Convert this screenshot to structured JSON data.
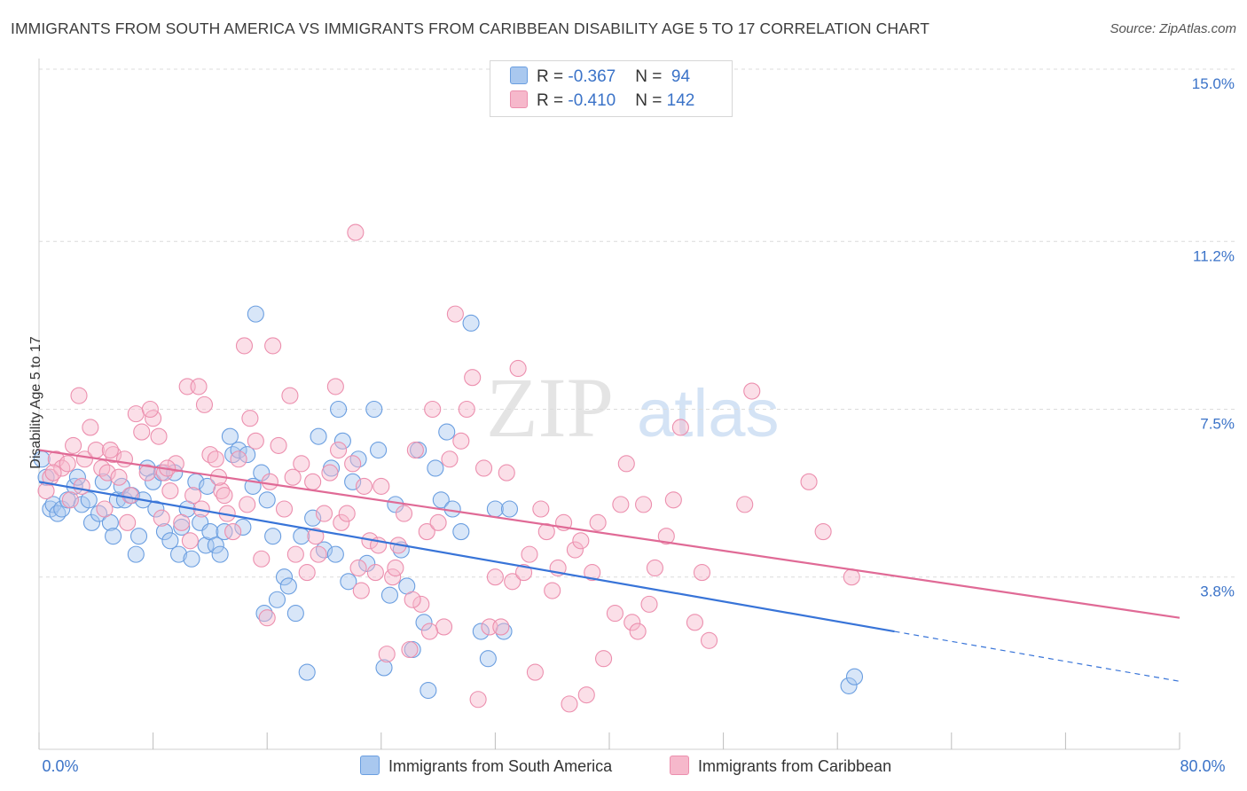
{
  "header": {
    "title": "IMMIGRANTS FROM SOUTH AMERICA VS IMMIGRANTS FROM CARIBBEAN DISABILITY AGE 5 TO 17 CORRELATION CHART",
    "source": "Source: ZipAtlas.com"
  },
  "watermark": {
    "part1": "ZIP",
    "part2": "atlas"
  },
  "legend_top": {
    "rows": [
      {
        "r_label": "R = ",
        "r_value": "-0.367",
        "n_label": "N = ",
        "n_value": " 94",
        "color": "#a9c8ef"
      },
      {
        "r_label": "R = ",
        "r_value": "-0.410",
        "n_label": "N = ",
        "n_value": "142",
        "color": "#f6b8cb"
      }
    ]
  },
  "chart_data": {
    "type": "scatter",
    "title": "IMMIGRANTS FROM SOUTH AMERICA VS IMMIGRANTS FROM CARIBBEAN DISABILITY AGE 5 TO 17 CORRELATION CHART",
    "xlabel": "",
    "ylabel": "Disability Age 5 to 17",
    "xlim": [
      0,
      80
    ],
    "ylim": [
      0,
      15.0
    ],
    "x_tick_labels": [
      "0.0%",
      "80.0%"
    ],
    "y_ticks": [
      3.8,
      7.5,
      11.2,
      15.0
    ],
    "y_tick_labels": [
      "3.8%",
      "7.5%",
      "11.2%",
      "15.0%"
    ],
    "grid": true,
    "legend": "bottom-center",
    "colors": {
      "blue_fill": "#a9c8ef",
      "blue_stroke": "#6a9ee0",
      "blue_line": "#3874d8",
      "pink_fill": "#f6b8cb",
      "pink_stroke": "#ec8fae",
      "pink_line": "#e06a96"
    },
    "series": [
      {
        "name": "Immigrants from South America",
        "r": -0.367,
        "n": 94,
        "trend": {
          "x0": 0,
          "y0": 5.9,
          "x1": 60,
          "y1": 2.6,
          "dash_to_x": 80,
          "dash_to_y": 1.5
        },
        "points": [
          [
            0.2,
            6.4
          ],
          [
            0.5,
            6.0
          ],
          [
            0.8,
            5.3
          ],
          [
            1.0,
            5.4
          ],
          [
            1.3,
            5.2
          ],
          [
            1.6,
            5.3
          ],
          [
            2.0,
            5.5
          ],
          [
            2.5,
            5.8
          ],
          [
            2.7,
            6.0
          ],
          [
            3.0,
            5.4
          ],
          [
            3.5,
            5.5
          ],
          [
            3.7,
            5.0
          ],
          [
            4.2,
            5.2
          ],
          [
            4.5,
            5.9
          ],
          [
            5.0,
            5.0
          ],
          [
            5.2,
            4.7
          ],
          [
            5.5,
            5.5
          ],
          [
            5.8,
            5.8
          ],
          [
            6.0,
            5.5
          ],
          [
            6.5,
            5.6
          ],
          [
            6.8,
            4.3
          ],
          [
            7.0,
            4.7
          ],
          [
            7.3,
            5.5
          ],
          [
            7.6,
            6.2
          ],
          [
            8.0,
            5.9
          ],
          [
            8.2,
            5.3
          ],
          [
            8.6,
            6.1
          ],
          [
            8.8,
            4.8
          ],
          [
            9.2,
            4.6
          ],
          [
            9.5,
            6.1
          ],
          [
            9.8,
            4.3
          ],
          [
            10.0,
            4.9
          ],
          [
            10.4,
            5.3
          ],
          [
            10.7,
            4.2
          ],
          [
            11.0,
            5.9
          ],
          [
            11.3,
            5.0
          ],
          [
            11.7,
            4.5
          ],
          [
            12.0,
            4.8
          ],
          [
            12.4,
            4.5
          ],
          [
            12.7,
            4.3
          ],
          [
            13.0,
            4.8
          ],
          [
            13.4,
            6.9
          ],
          [
            13.6,
            6.5
          ],
          [
            14.0,
            6.6
          ],
          [
            14.3,
            4.9
          ],
          [
            14.6,
            6.5
          ],
          [
            15.0,
            5.8
          ],
          [
            15.2,
            9.6
          ],
          [
            15.6,
            6.1
          ],
          [
            16.0,
            5.5
          ],
          [
            16.4,
            4.7
          ],
          [
            16.7,
            3.3
          ],
          [
            17.2,
            3.8
          ],
          [
            17.5,
            3.6
          ],
          [
            18.0,
            3.0
          ],
          [
            18.4,
            4.7
          ],
          [
            18.8,
            1.7
          ],
          [
            19.2,
            5.1
          ],
          [
            19.6,
            6.9
          ],
          [
            20.0,
            4.4
          ],
          [
            20.5,
            6.2
          ],
          [
            21.0,
            7.5
          ],
          [
            21.3,
            6.8
          ],
          [
            21.7,
            3.7
          ],
          [
            22.0,
            5.9
          ],
          [
            22.4,
            6.4
          ],
          [
            23.0,
            4.1
          ],
          [
            23.5,
            7.5
          ],
          [
            23.8,
            6.6
          ],
          [
            24.2,
            1.8
          ],
          [
            24.6,
            3.4
          ],
          [
            25.0,
            5.4
          ],
          [
            25.4,
            4.4
          ],
          [
            25.8,
            3.6
          ],
          [
            26.2,
            2.2
          ],
          [
            26.6,
            6.6
          ],
          [
            27.0,
            2.8
          ],
          [
            27.3,
            1.3
          ],
          [
            27.8,
            6.2
          ],
          [
            28.2,
            5.5
          ],
          [
            28.6,
            7.0
          ],
          [
            29.0,
            5.3
          ],
          [
            29.6,
            4.8
          ],
          [
            30.3,
            9.4
          ],
          [
            31.0,
            2.6
          ],
          [
            31.5,
            2.0
          ],
          [
            32.0,
            5.3
          ],
          [
            32.6,
            2.6
          ],
          [
            33.0,
            5.3
          ],
          [
            56.8,
            1.4
          ],
          [
            57.2,
            1.6
          ],
          [
            20.8,
            4.3
          ],
          [
            15.8,
            3.0
          ],
          [
            11.8,
            5.8
          ]
        ]
      },
      {
        "name": "Immigrants from Caribbean",
        "r": -0.41,
        "n": 142,
        "trend": {
          "x0": 0,
          "y0": 6.6,
          "x1": 80,
          "y1": 2.9
        },
        "points": [
          [
            0.5,
            5.7
          ],
          [
            0.8,
            6.0
          ],
          [
            1.2,
            6.4
          ],
          [
            1.6,
            6.2
          ],
          [
            2.0,
            6.3
          ],
          [
            2.4,
            6.7
          ],
          [
            2.8,
            7.8
          ],
          [
            3.2,
            6.4
          ],
          [
            3.6,
            7.1
          ],
          [
            4.0,
            6.6
          ],
          [
            4.4,
            6.2
          ],
          [
            4.8,
            6.1
          ],
          [
            5.2,
            6.5
          ],
          [
            5.6,
            6.0
          ],
          [
            6.0,
            6.4
          ],
          [
            6.4,
            5.6
          ],
          [
            6.8,
            7.4
          ],
          [
            7.2,
            7.0
          ],
          [
            7.6,
            6.1
          ],
          [
            8.0,
            7.3
          ],
          [
            8.4,
            6.9
          ],
          [
            8.8,
            6.1
          ],
          [
            9.2,
            5.7
          ],
          [
            9.6,
            6.3
          ],
          [
            10.0,
            5.0
          ],
          [
            10.4,
            8.0
          ],
          [
            10.8,
            5.6
          ],
          [
            11.2,
            8.0
          ],
          [
            11.6,
            7.6
          ],
          [
            12.0,
            6.5
          ],
          [
            12.4,
            6.4
          ],
          [
            12.8,
            5.7
          ],
          [
            13.2,
            5.2
          ],
          [
            13.6,
            4.8
          ],
          [
            14.0,
            6.4
          ],
          [
            14.4,
            8.9
          ],
          [
            14.8,
            7.3
          ],
          [
            15.2,
            6.8
          ],
          [
            15.6,
            4.2
          ],
          [
            16.0,
            2.9
          ],
          [
            16.4,
            8.9
          ],
          [
            16.8,
            6.7
          ],
          [
            17.2,
            5.3
          ],
          [
            17.6,
            7.8
          ],
          [
            18.0,
            4.3
          ],
          [
            18.4,
            6.3
          ],
          [
            18.8,
            3.9
          ],
          [
            19.2,
            5.9
          ],
          [
            19.6,
            4.3
          ],
          [
            20.0,
            5.2
          ],
          [
            20.4,
            6.1
          ],
          [
            20.8,
            8.0
          ],
          [
            21.2,
            5.0
          ],
          [
            21.6,
            5.2
          ],
          [
            22.0,
            6.3
          ],
          [
            22.4,
            4.0
          ],
          [
            22.8,
            5.8
          ],
          [
            23.2,
            4.6
          ],
          [
            23.6,
            3.9
          ],
          [
            24.0,
            5.8
          ],
          [
            24.4,
            2.1
          ],
          [
            24.8,
            3.8
          ],
          [
            25.2,
            4.5
          ],
          [
            25.6,
            5.2
          ],
          [
            26.0,
            2.2
          ],
          [
            26.4,
            6.6
          ],
          [
            26.8,
            3.2
          ],
          [
            27.2,
            4.8
          ],
          [
            27.6,
            7.5
          ],
          [
            28.0,
            5.0
          ],
          [
            28.4,
            2.7
          ],
          [
            28.8,
            6.4
          ],
          [
            29.2,
            9.6
          ],
          [
            29.6,
            6.8
          ],
          [
            30.0,
            7.5
          ],
          [
            30.4,
            8.2
          ],
          [
            30.8,
            1.1
          ],
          [
            31.2,
            6.2
          ],
          [
            31.6,
            2.7
          ],
          [
            32.0,
            3.8
          ],
          [
            32.4,
            2.7
          ],
          [
            32.8,
            6.1
          ],
          [
            33.2,
            3.7
          ],
          [
            33.6,
            8.4
          ],
          [
            34.0,
            3.9
          ],
          [
            34.4,
            4.3
          ],
          [
            34.8,
            1.7
          ],
          [
            35.2,
            5.3
          ],
          [
            35.6,
            4.8
          ],
          [
            36.0,
            3.5
          ],
          [
            36.4,
            4.0
          ],
          [
            36.8,
            5.0
          ],
          [
            37.2,
            1.0
          ],
          [
            37.6,
            4.4
          ],
          [
            38.0,
            4.6
          ],
          [
            38.4,
            1.2
          ],
          [
            38.8,
            3.9
          ],
          [
            39.2,
            5.0
          ],
          [
            39.6,
            2.0
          ],
          [
            40.4,
            3.0
          ],
          [
            40.8,
            5.4
          ],
          [
            41.2,
            6.3
          ],
          [
            41.6,
            2.8
          ],
          [
            42.0,
            2.6
          ],
          [
            42.4,
            5.4
          ],
          [
            42.8,
            3.2
          ],
          [
            43.2,
            4.0
          ],
          [
            44.0,
            4.7
          ],
          [
            44.5,
            5.5
          ],
          [
            45.0,
            7.1
          ],
          [
            46.0,
            2.8
          ],
          [
            46.5,
            3.9
          ],
          [
            47.0,
            2.4
          ],
          [
            49.5,
            5.4
          ],
          [
            50.0,
            7.9
          ],
          [
            54.0,
            5.9
          ],
          [
            55.0,
            4.8
          ],
          [
            57.0,
            3.8
          ],
          [
            22.2,
            11.4
          ],
          [
            12.6,
            6.0
          ],
          [
            7.8,
            7.5
          ],
          [
            9.0,
            6.2
          ],
          [
            5.0,
            6.6
          ],
          [
            3.0,
            5.8
          ],
          [
            1.0,
            6.1
          ],
          [
            2.2,
            5.5
          ],
          [
            4.6,
            5.3
          ],
          [
            6.2,
            5.0
          ],
          [
            8.6,
            5.1
          ],
          [
            10.6,
            4.6
          ],
          [
            11.4,
            5.3
          ],
          [
            13.0,
            5.6
          ],
          [
            14.6,
            5.4
          ],
          [
            16.2,
            5.9
          ],
          [
            17.8,
            6.0
          ],
          [
            19.4,
            4.7
          ],
          [
            21.0,
            6.6
          ],
          [
            22.6,
            3.5
          ],
          [
            23.8,
            4.5
          ],
          [
            25.0,
            4.0
          ],
          [
            26.2,
            3.3
          ],
          [
            27.4,
            2.6
          ]
        ]
      }
    ]
  },
  "bottom_legend": {
    "items": [
      {
        "label": "Immigrants from South America",
        "color": "#a9c8ef"
      },
      {
        "label": "Immigrants from Caribbean",
        "color": "#f6b8cb"
      }
    ]
  }
}
